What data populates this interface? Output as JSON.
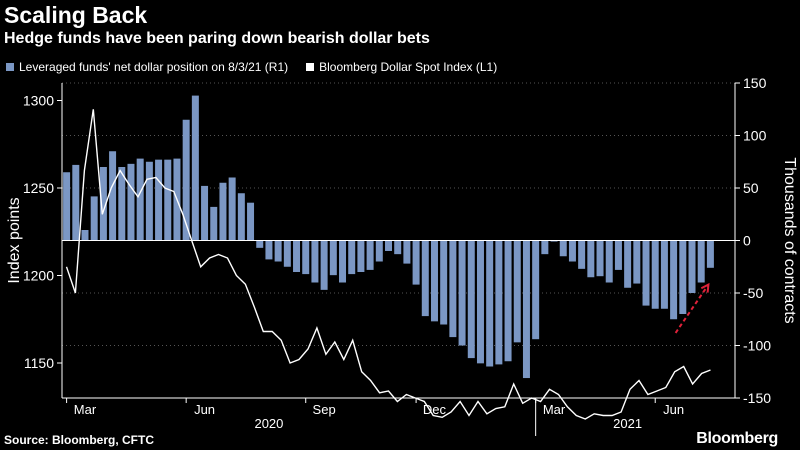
{
  "header": {
    "title": "Scaling Back",
    "subtitle": "Hedge funds have been paring down bearish dollar bets"
  },
  "footer": {
    "source": "Source: Bloomberg, CFTC",
    "brand": "Bloomberg"
  },
  "chart_data": {
    "type": "bar+line",
    "legend": [
      {
        "label": "Leveraged funds' net dollar position on 8/3/21 (R1)",
        "color": "#7b97c4",
        "kind": "bar"
      },
      {
        "label": "Bloomberg Dollar Spot Index (L1)",
        "color": "#ffffff",
        "kind": "line"
      }
    ],
    "ylabel_left": "Index points",
    "ylabel_right": "Thousands of contracts",
    "y_left": {
      "min": 1130,
      "max": 1310,
      "ticks": [
        1150,
        1200,
        1250,
        1300
      ]
    },
    "y_right": {
      "min": -150,
      "max": 150,
      "ticks": [
        -150,
        -100,
        -50,
        0,
        50,
        100,
        150
      ]
    },
    "x_months": [
      {
        "label": "Mar",
        "idx": 2
      },
      {
        "label": "Jun",
        "idx": 15
      },
      {
        "label": "Sep",
        "idx": 28
      },
      {
        "label": "Dec",
        "idx": 40
      },
      {
        "label": "Mar",
        "idx": 53
      },
      {
        "label": "Jun",
        "idx": 66
      }
    ],
    "x_years": [
      {
        "label": "2020",
        "idx": 22
      },
      {
        "label": "2021",
        "idx": 61
      }
    ],
    "bar_values": [
      65,
      72,
      10,
      42,
      70,
      85,
      70,
      73,
      78,
      75,
      77,
      77,
      78,
      115,
      138,
      52,
      32,
      55,
      60,
      45,
      36,
      -7,
      -18,
      -20,
      -25,
      -30,
      -32,
      -40,
      -47,
      -33,
      -40,
      -32,
      -30,
      -28,
      -20,
      -10,
      -13,
      -22,
      -42,
      -72,
      -77,
      -80,
      -92,
      -100,
      -112,
      -117,
      -120,
      -118,
      -115,
      -97,
      -131,
      -94,
      -13,
      -1,
      -15,
      -20,
      -27,
      -35,
      -34,
      -40,
      -28,
      -45,
      -41,
      -62,
      -65,
      -65,
      -75,
      -70,
      -50,
      -40,
      -26
    ],
    "line_values": [
      1205,
      1190,
      1260,
      1295,
      1235,
      1250,
      1260,
      1252,
      1245,
      1255,
      1256,
      1250,
      1248,
      1235,
      1220,
      1205,
      1210,
      1212,
      1210,
      1200,
      1195,
      1182,
      1168,
      1168,
      1163,
      1150,
      1152,
      1158,
      1170,
      1155,
      1162,
      1152,
      1163,
      1145,
      1140,
      1133,
      1134,
      1128,
      1132,
      1130,
      1128,
      1120,
      1119,
      1122,
      1128,
      1120,
      1128,
      1121,
      1124,
      1125,
      1138,
      1127,
      1130,
      1128,
      1135,
      1132,
      1125,
      1120,
      1118,
      1121,
      1120,
      1120,
      1122,
      1135,
      1140,
      1132,
      1134,
      1136,
      1145,
      1148,
      1138,
      1144,
      1146
    ],
    "annotation": {
      "type": "arrow",
      "style": "dashed",
      "color": "#e0223a"
    }
  }
}
